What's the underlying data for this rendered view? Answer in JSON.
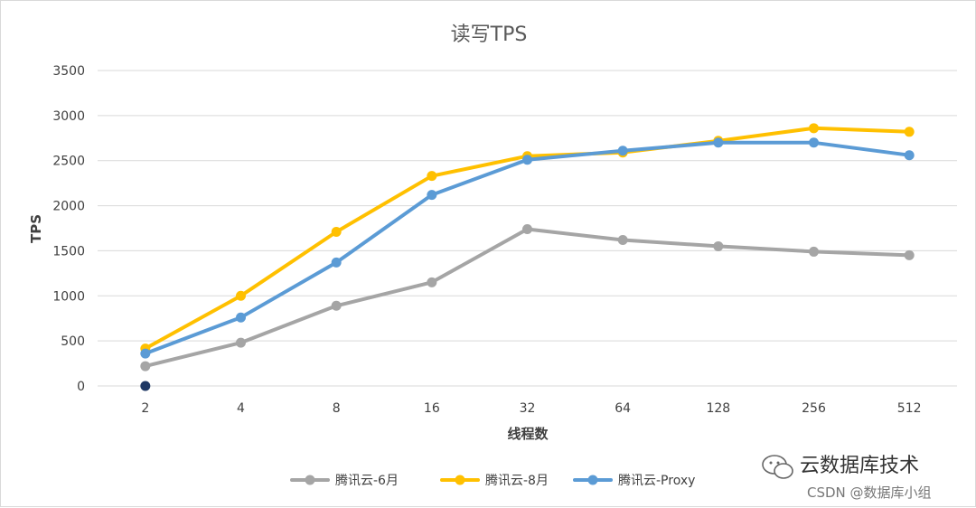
{
  "chart_data": {
    "type": "line",
    "title": "读写TPS",
    "xlabel": "线程数",
    "ylabel": "TPS",
    "categories": [
      "2",
      "4",
      "8",
      "16",
      "32",
      "64",
      "128",
      "256",
      "512"
    ],
    "ylim": [
      0,
      3500
    ],
    "yticks": [
      0,
      500,
      1000,
      1500,
      2000,
      2500,
      3000,
      3500
    ],
    "grid": true,
    "legend": "bottom",
    "series": [
      {
        "name": "腾讯云-6月",
        "color": "#a5a5a5",
        "values": [
          220,
          480,
          890,
          1150,
          1740,
          1620,
          1550,
          1490,
          1450
        ]
      },
      {
        "name": "腾讯云-8月",
        "color": "#ffc000",
        "values": [
          415,
          1000,
          1710,
          2330,
          2550,
          2590,
          2720,
          2860,
          2820
        ]
      },
      {
        "name": "腾讯云-Proxy",
        "color": "#5b9bd5",
        "values": [
          360,
          760,
          1370,
          2120,
          2510,
          2610,
          2700,
          2700,
          2560
        ]
      }
    ],
    "annotations": [
      {
        "x": "2",
        "y": 0,
        "color": "#1f3864"
      }
    ]
  },
  "watermark": {
    "line1": "云数据库技术",
    "line2": "CSDN @数据库小组"
  }
}
